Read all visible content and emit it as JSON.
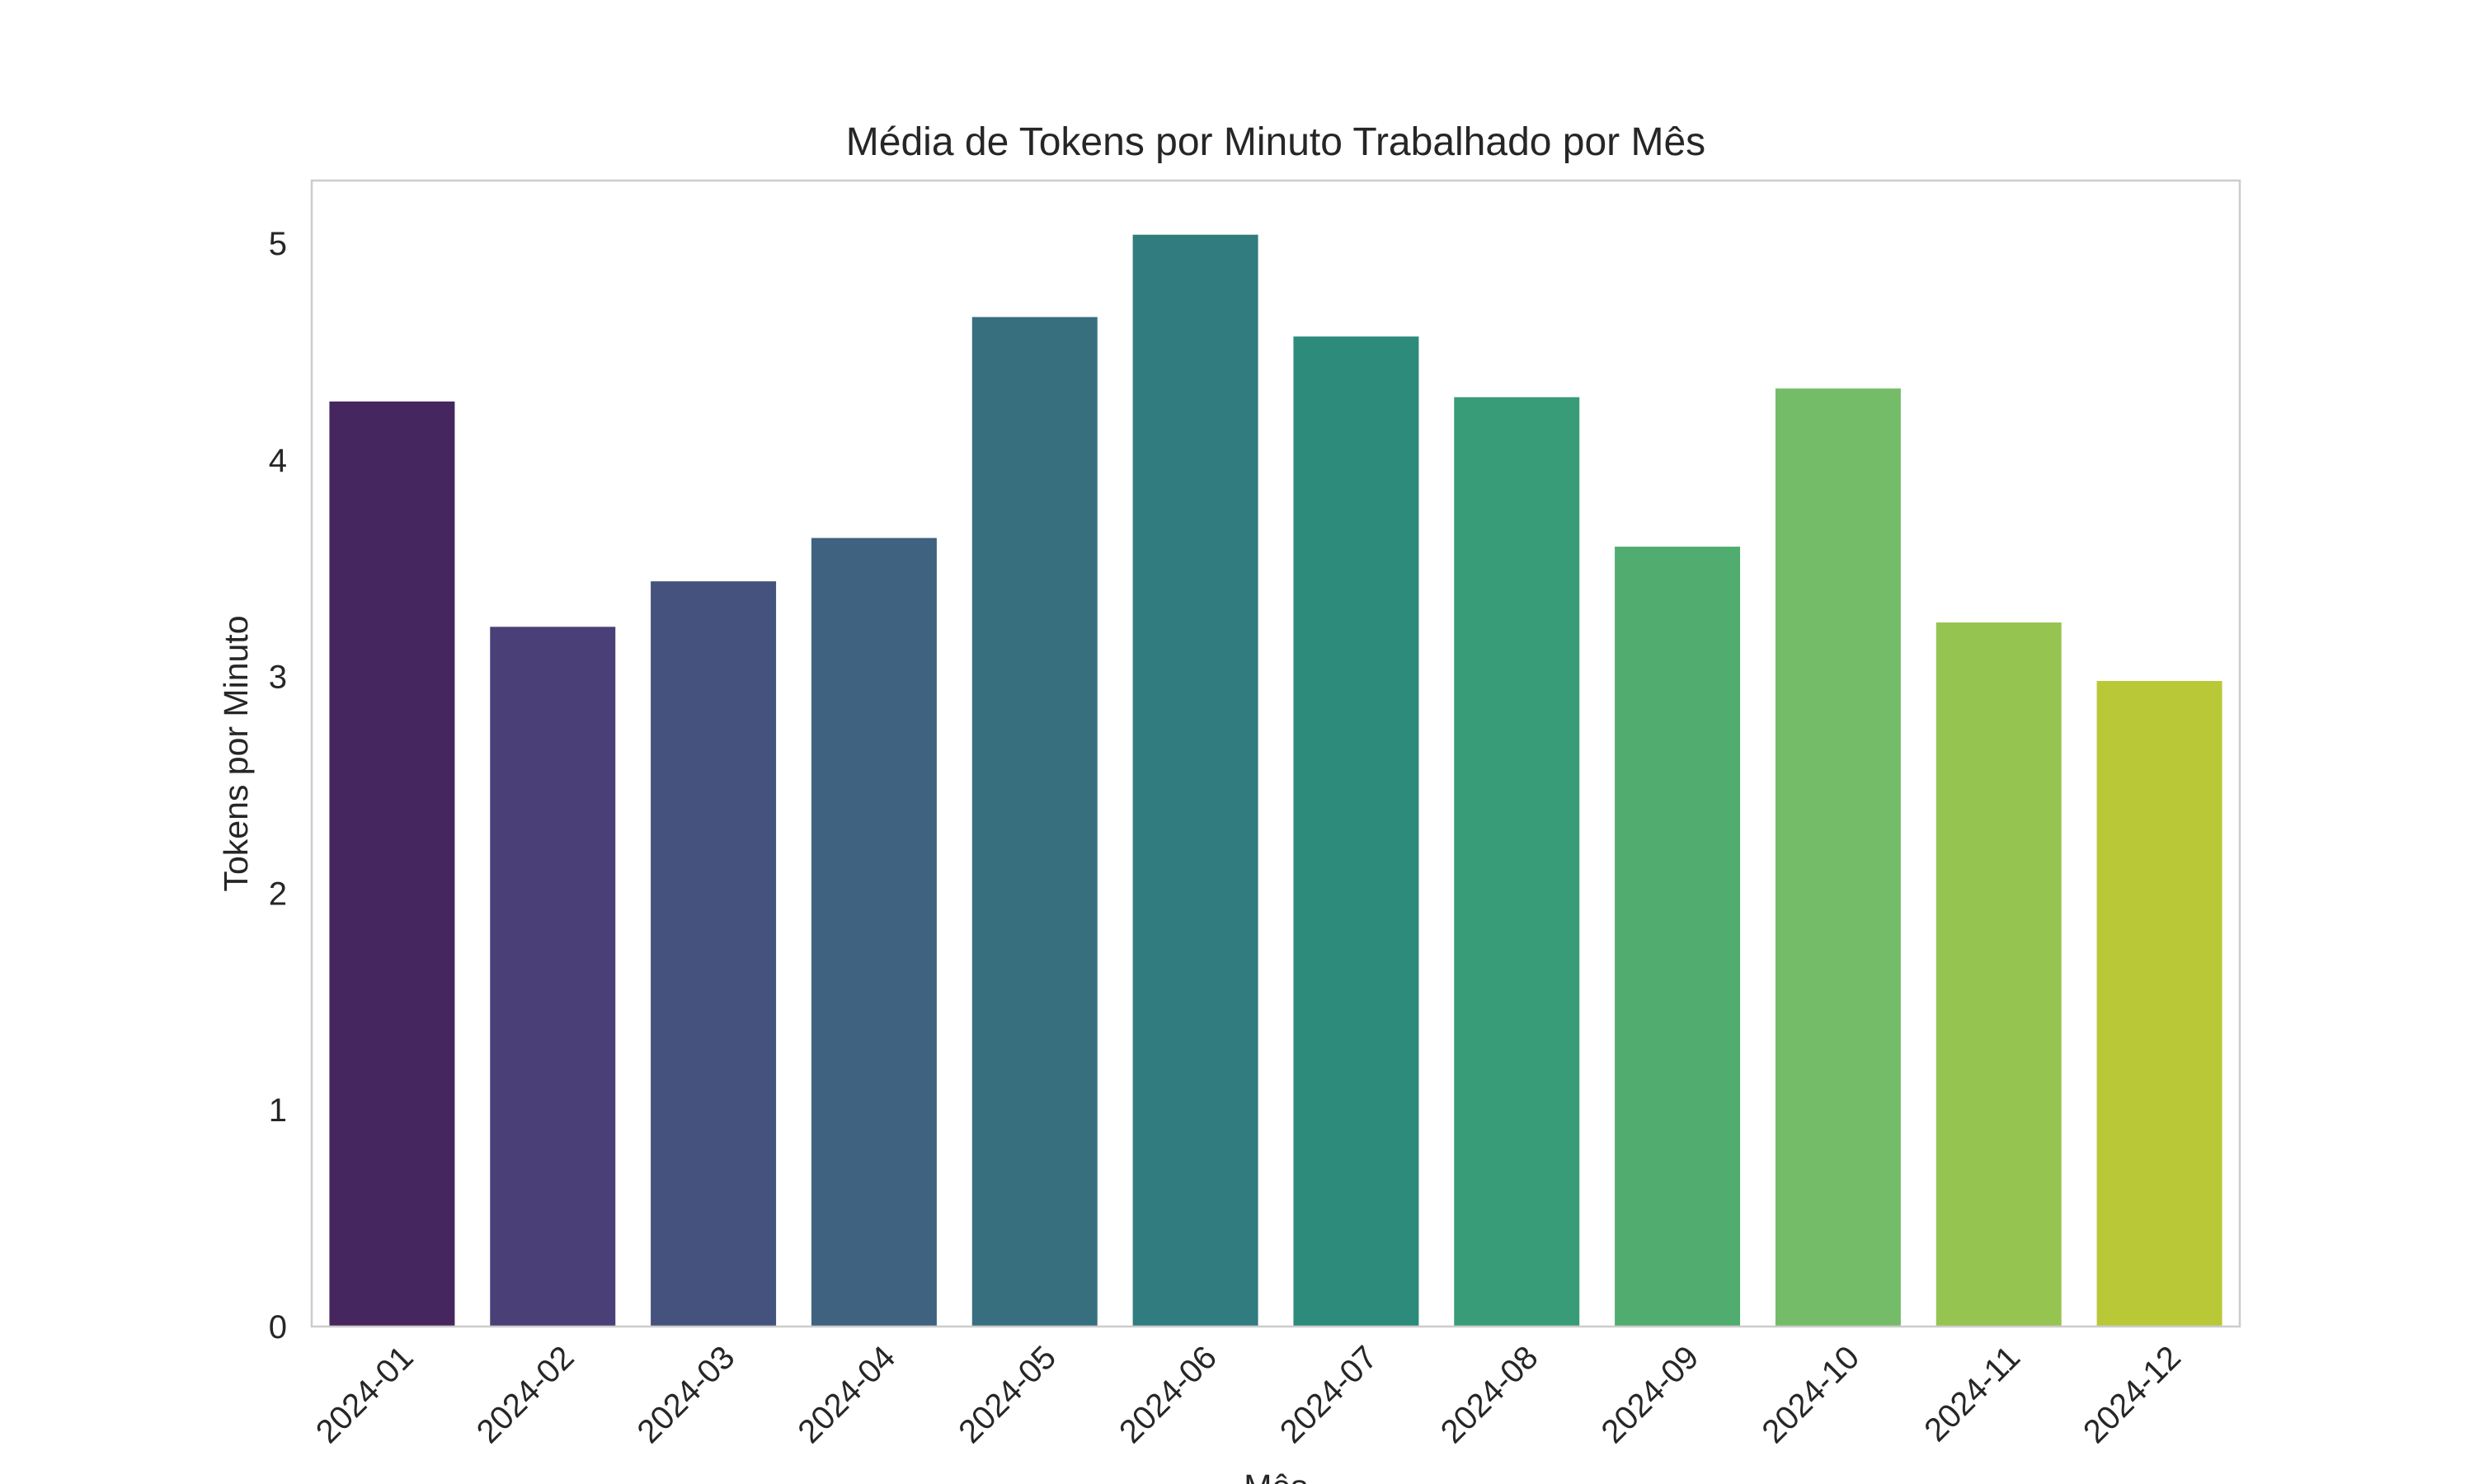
{
  "chart_data": {
    "type": "bar",
    "title": "Média de Tokens por Minuto Trabalhado por Mês",
    "xlabel": "Mês",
    "ylabel": "Tokens por Minuto",
    "categories": [
      "2024-01",
      "2024-02",
      "2024-03",
      "2024-04",
      "2024-05",
      "2024-06",
      "2024-07",
      "2024-08",
      "2024-09",
      "2024-10",
      "2024-11",
      "2024-12"
    ],
    "values": [
      4.27,
      3.23,
      3.44,
      3.64,
      4.66,
      5.04,
      4.57,
      4.29,
      3.6,
      4.33,
      3.25,
      2.98
    ],
    "colors": [
      "#46265f",
      "#4a3f77",
      "#45527e",
      "#3e627f",
      "#376f7f",
      "#307c7e",
      "#2d8b7c",
      "#389c78",
      "#50ac6f",
      "#74bc68",
      "#96c451",
      "#b9c836"
    ],
    "ylim": [
      0,
      5.29
    ],
    "yticks": [
      0,
      1,
      2,
      3,
      4,
      5
    ],
    "grid": false,
    "legend": "none",
    "frame_color": "#cccccc"
  }
}
